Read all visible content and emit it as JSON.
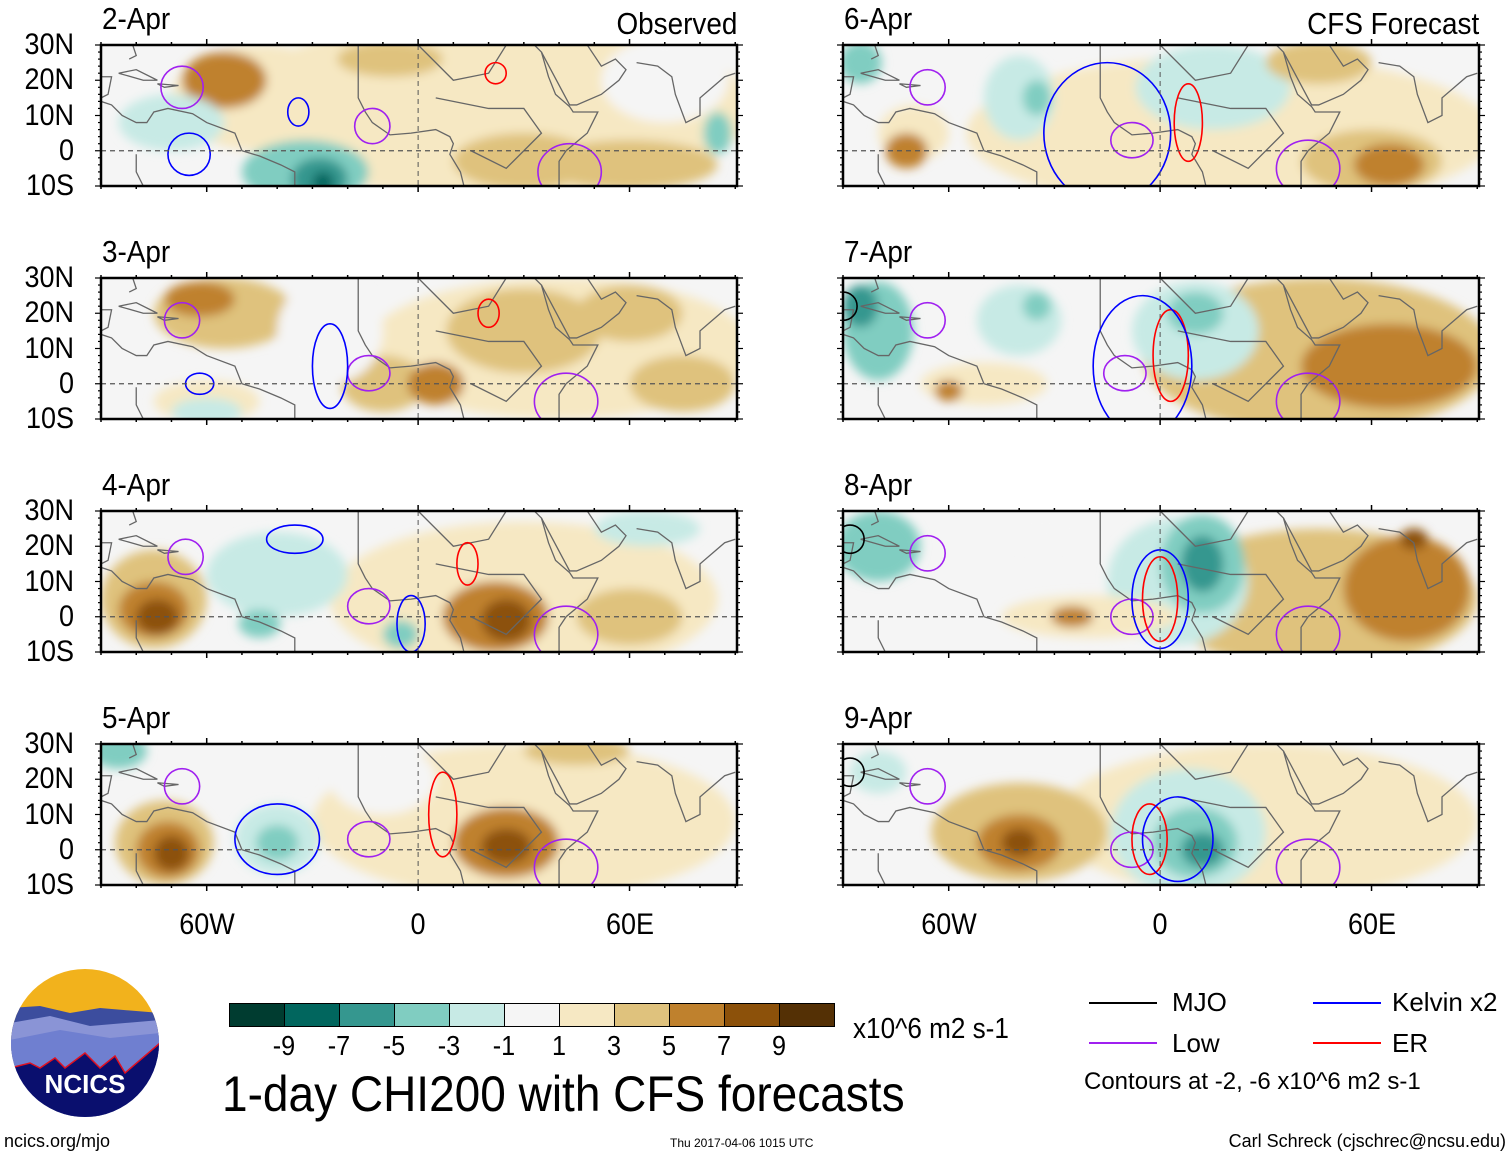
{
  "header": {
    "left_tag": "Observed",
    "right_tag": "CFS Forecast"
  },
  "axes": {
    "lat_labels": [
      "30N",
      "20N",
      "10N",
      "0",
      "10S"
    ],
    "lat_values": [
      30,
      20,
      10,
      0,
      -10
    ],
    "lon_labels": [
      "60W",
      "0",
      "60E"
    ],
    "lon_values": [
      -60,
      0,
      60
    ],
    "lon_range": [
      -90,
      90.5
    ],
    "lat_range": [
      -10,
      30
    ]
  },
  "colors": {
    "levels": [
      {
        "max": -8,
        "color": "#003c30"
      },
      {
        "max": -6,
        "color": "#01665e"
      },
      {
        "max": -4,
        "color": "#35978f"
      },
      {
        "max": -2,
        "color": "#80cdc1"
      },
      {
        "max": -1,
        "color": "#c7eae5"
      },
      {
        "max": 1,
        "color": "#f5f5f5"
      },
      {
        "max": 3,
        "color": "#f6e8c3"
      },
      {
        "max": 5,
        "color": "#dfc27d"
      },
      {
        "max": 7,
        "color": "#bf812d"
      },
      {
        "max": 9,
        "color": "#8c510a"
      },
      {
        "max": 99,
        "color": "#543005"
      }
    ],
    "MJO": "#000000",
    "Low": "#a020f0",
    "Kelvin": "#0000ff",
    "ER": "#ff0000"
  },
  "panels": [
    {
      "title": "2-Apr",
      "col": 0,
      "row": 0,
      "blobs": [
        [
          20,
          12,
          75,
          25,
          2
        ],
        [
          -45,
          15,
          25,
          15,
          2
        ],
        [
          -55,
          20,
          12,
          8,
          5.5
        ],
        [
          -8,
          26,
          15,
          5,
          4
        ],
        [
          30,
          -3,
          20,
          8,
          4
        ],
        [
          60,
          -4,
          25,
          7,
          3.5
        ],
        [
          -70,
          8,
          15,
          8,
          -1.5
        ],
        [
          -32,
          -6,
          18,
          9,
          -3
        ],
        [
          -28,
          -8,
          8,
          6,
          -6
        ],
        [
          -27,
          -9,
          3,
          3,
          -8
        ],
        [
          70,
          20,
          18,
          12,
          0
        ],
        [
          85,
          5,
          4,
          6,
          -3
        ]
      ],
      "contours": [
        [
          "Low",
          -67,
          18,
          6,
          6
        ],
        [
          "Low",
          -13,
          7,
          5,
          5
        ],
        [
          "Low",
          43,
          -6,
          9,
          8
        ],
        [
          "ER",
          22,
          22,
          3,
          3
        ],
        [
          "Kelvin",
          -65,
          -1,
          6,
          6
        ],
        [
          "Kelvin",
          -34,
          11,
          3,
          4
        ]
      ]
    },
    {
      "title": "3-Apr",
      "col": 0,
      "row": 1,
      "blobs": [
        [
          40,
          10,
          55,
          20,
          2.5
        ],
        [
          -55,
          20,
          20,
          10,
          4
        ],
        [
          -62,
          24,
          10,
          5,
          5.5
        ],
        [
          -10,
          0,
          12,
          8,
          4
        ],
        [
          5,
          0,
          8,
          6,
          5
        ],
        [
          30,
          15,
          22,
          12,
          3.5
        ],
        [
          75,
          0,
          15,
          8,
          4
        ],
        [
          -60,
          -5,
          15,
          6,
          2
        ],
        [
          -60,
          -8,
          10,
          4,
          -2
        ],
        [
          -25,
          15,
          15,
          15,
          0
        ],
        [
          60,
          20,
          15,
          8,
          3
        ]
      ],
      "contours": [
        [
          "Low",
          -67,
          18,
          5,
          5
        ],
        [
          "Low",
          -14,
          3,
          6,
          5
        ],
        [
          "Low",
          42,
          -5,
          9,
          8
        ],
        [
          "ER",
          20,
          20,
          3,
          4
        ],
        [
          "Kelvin",
          -62,
          0,
          4,
          3
        ],
        [
          "Kelvin",
          -25,
          5,
          5,
          12
        ]
      ]
    },
    {
      "title": "4-Apr",
      "col": 0,
      "row": 2,
      "blobs": [
        [
          30,
          5,
          55,
          22,
          2.5
        ],
        [
          -75,
          5,
          15,
          14,
          4
        ],
        [
          -75,
          2,
          10,
          8,
          6
        ],
        [
          -74,
          0,
          6,
          5,
          8
        ],
        [
          22,
          0,
          15,
          10,
          5
        ],
        [
          25,
          -1,
          7,
          6,
          7.5
        ],
        [
          -40,
          12,
          20,
          12,
          -1.5
        ],
        [
          -45,
          -2,
          6,
          4,
          -3.5
        ],
        [
          -5,
          -5,
          5,
          4,
          -3.5
        ],
        [
          60,
          0,
          15,
          8,
          3.5
        ],
        [
          65,
          25,
          15,
          5,
          -1.5
        ]
      ],
      "contours": [
        [
          "Low",
          -66,
          17,
          5,
          5
        ],
        [
          "Low",
          -14,
          3,
          6,
          5
        ],
        [
          "Low",
          42,
          -5,
          9,
          8
        ],
        [
          "ER",
          14,
          15,
          3,
          6
        ],
        [
          "Kelvin",
          -2,
          -2,
          4,
          8
        ],
        [
          "Kelvin",
          -35,
          22,
          8,
          4
        ]
      ]
    },
    {
      "title": "5-Apr",
      "col": 0,
      "row": 3,
      "blobs": [
        [
          30,
          8,
          60,
          22,
          2.5
        ],
        [
          -72,
          2,
          14,
          12,
          4
        ],
        [
          -71,
          0,
          9,
          8,
          6
        ],
        [
          -70,
          -1,
          5,
          5,
          8.5
        ],
        [
          25,
          2,
          15,
          10,
          5
        ],
        [
          25,
          1,
          7,
          5,
          7
        ],
        [
          -40,
          3,
          12,
          10,
          -1.5
        ],
        [
          -40,
          2,
          6,
          5,
          -3.5
        ],
        [
          -10,
          20,
          15,
          10,
          0
        ],
        [
          -85,
          28,
          8,
          5,
          -3
        ],
        [
          45,
          28,
          15,
          4,
          4
        ]
      ],
      "contours": [
        [
          "Low",
          -67,
          18,
          5,
          5
        ],
        [
          "Low",
          -14,
          3,
          6,
          5
        ],
        [
          "Low",
          42,
          -5,
          9,
          8
        ],
        [
          "ER",
          7,
          10,
          4,
          12
        ],
        [
          "Kelvin",
          -40,
          3,
          12,
          10
        ]
      ]
    },
    {
      "title": "6-Apr",
      "col": 1,
      "row": 0,
      "blobs": [
        [
          20,
          5,
          75,
          22,
          2
        ],
        [
          -70,
          5,
          10,
          8,
          2.5
        ],
        [
          -72,
          0,
          6,
          5,
          5
        ],
        [
          -40,
          15,
          10,
          12,
          -1.5
        ],
        [
          -35,
          15,
          4,
          5,
          -3
        ],
        [
          15,
          18,
          22,
          12,
          -1.5
        ],
        [
          60,
          -3,
          20,
          9,
          4
        ],
        [
          65,
          -4,
          10,
          6,
          5.5
        ],
        [
          45,
          25,
          15,
          6,
          3.5
        ],
        [
          -85,
          25,
          6,
          6,
          -4
        ]
      ],
      "contours": [
        [
          "Low",
          -66,
          18,
          5,
          5
        ],
        [
          "Low",
          -8,
          3,
          6,
          5
        ],
        [
          "Low",
          42,
          -5,
          9,
          8
        ],
        [
          "ER",
          8,
          8,
          4,
          11
        ],
        [
          "Kelvin",
          -15,
          5,
          18,
          20
        ]
      ]
    },
    {
      "title": "7-Apr",
      "col": 1,
      "row": 1,
      "blobs": [
        [
          45,
          8,
          50,
          22,
          3
        ],
        [
          65,
          5,
          25,
          12,
          5
        ],
        [
          -40,
          18,
          12,
          10,
          -1.5
        ],
        [
          -35,
          22,
          4,
          4,
          -3
        ],
        [
          10,
          15,
          18,
          14,
          -1.5
        ],
        [
          10,
          20,
          8,
          6,
          -3.5
        ],
        [
          -80,
          15,
          10,
          14,
          -3
        ],
        [
          -85,
          22,
          5,
          6,
          -6
        ],
        [
          -50,
          0,
          18,
          6,
          2
        ],
        [
          -60,
          -2,
          4,
          3,
          5
        ]
      ],
      "contours": [
        [
          "Low",
          -66,
          18,
          5,
          5
        ],
        [
          "Low",
          -10,
          3,
          6,
          5
        ],
        [
          "Low",
          42,
          -5,
          9,
          8
        ],
        [
          "ER",
          3,
          8,
          5,
          13
        ],
        [
          "Kelvin",
          -5,
          5,
          14,
          20
        ],
        [
          "MJO",
          -90,
          22,
          4,
          4
        ]
      ]
    },
    {
      "title": "8-Apr",
      "col": 1,
      "row": 2,
      "blobs": [
        [
          45,
          5,
          45,
          20,
          3
        ],
        [
          70,
          8,
          18,
          15,
          5.5
        ],
        [
          72,
          22,
          4,
          3,
          8
        ],
        [
          5,
          10,
          20,
          18,
          -1.5
        ],
        [
          12,
          15,
          12,
          14,
          -3.5
        ],
        [
          12,
          15,
          6,
          8,
          -6
        ],
        [
          -80,
          20,
          12,
          10,
          -3
        ],
        [
          -20,
          0,
          25,
          6,
          2.5
        ],
        [
          -25,
          0,
          6,
          3,
          5
        ],
        [
          -35,
          25,
          15,
          5,
          -1
        ]
      ],
      "contours": [
        [
          "Low",
          -66,
          18,
          5,
          5
        ],
        [
          "Low",
          -8,
          0,
          6,
          5
        ],
        [
          "Low",
          42,
          -5,
          9,
          8
        ],
        [
          "ER",
          0,
          5,
          5,
          12
        ],
        [
          "Kelvin",
          0,
          5,
          8,
          14
        ],
        [
          "MJO",
          -88,
          22,
          4,
          4
        ]
      ]
    },
    {
      "title": "9-Apr",
      "col": 1,
      "row": 3,
      "blobs": [
        [
          30,
          8,
          60,
          22,
          2
        ],
        [
          -40,
          5,
          25,
          14,
          3.5
        ],
        [
          -40,
          2,
          12,
          8,
          5
        ],
        [
          -40,
          2,
          5,
          4,
          7.5
        ],
        [
          8,
          5,
          22,
          18,
          -1.5
        ],
        [
          10,
          2,
          12,
          10,
          -3.5
        ],
        [
          12,
          0,
          6,
          5,
          -6
        ],
        [
          60,
          8,
          20,
          15,
          2.5
        ],
        [
          -80,
          22,
          8,
          6,
          -2
        ]
      ],
      "contours": [
        [
          "Low",
          -66,
          18,
          5,
          5
        ],
        [
          "Low",
          -8,
          0,
          6,
          5
        ],
        [
          "Low",
          42,
          -5,
          9,
          8
        ],
        [
          "ER",
          -3,
          3,
          5,
          10
        ],
        [
          "Kelvin",
          5,
          3,
          10,
          12
        ],
        [
          "MJO",
          -88,
          22,
          4,
          4
        ]
      ]
    }
  ],
  "colorbar": {
    "labels": [
      "-9",
      "-7",
      "-5",
      "-3",
      "-1",
      "1",
      "3",
      "5",
      "7",
      "9"
    ],
    "units": "x10^6 m2 s-1"
  },
  "title": "1-day CHI200 with CFS forecasts",
  "legend": {
    "mjo": "MJO",
    "kelvin": "Kelvin x2",
    "low": "Low",
    "er": "ER",
    "contours_note": "Contours at -2, -6 x10^6 m2 s-1"
  },
  "footer": {
    "url": "ncics.org/mjo",
    "timestamp": "Thu 2017-04-06 1015 UTC",
    "credit": "Carl Schreck (cjschrec@ncsu.edu)"
  },
  "logo": {
    "text": "NCICS"
  }
}
